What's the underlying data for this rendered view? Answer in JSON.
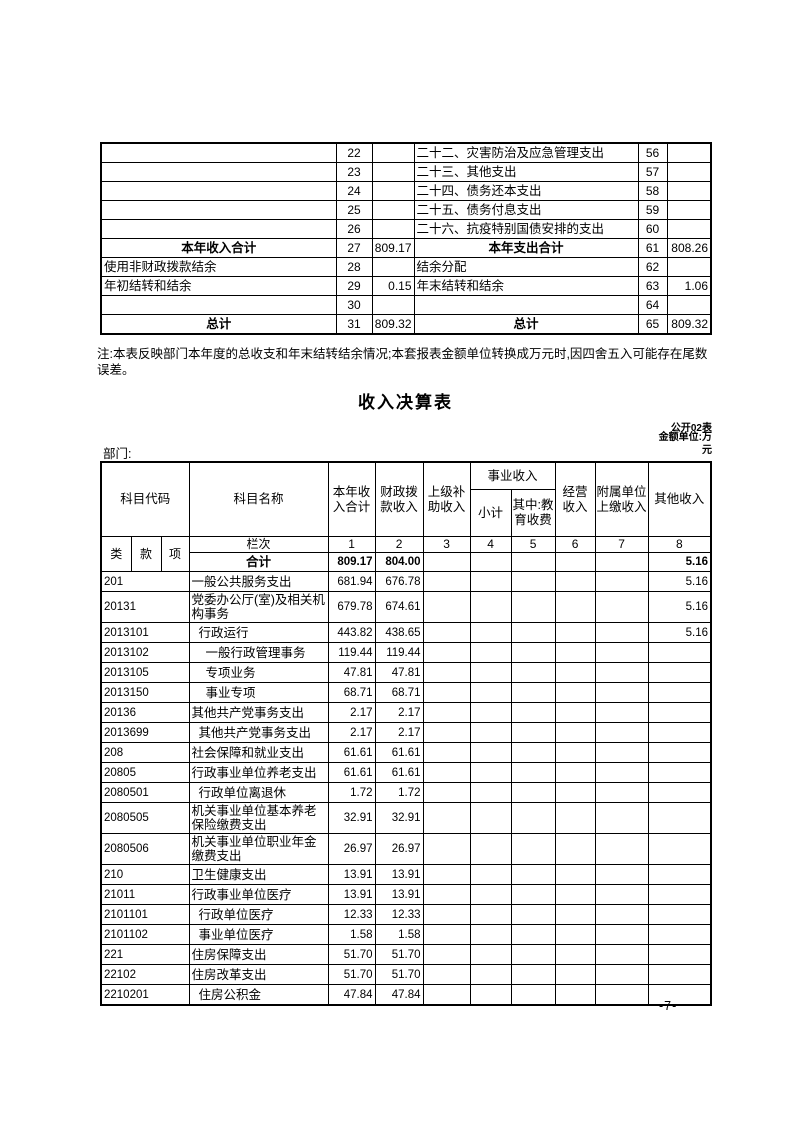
{
  "page_number": "-7-",
  "note": "注:本表反映部门本年度的总收支和年末结转结余情况;本套报表金额单位转换成万元时,因四舍五入可能存在尾数误差。",
  "summary_table": {
    "rows": [
      {
        "l_label": "",
        "l_bold": false,
        "l_no": "22",
        "l_val": "",
        "r_label": "二十二、灾害防治及应急管理支出",
        "r_bold": false,
        "r_no": "56",
        "r_val": ""
      },
      {
        "l_label": "",
        "l_bold": false,
        "l_no": "23",
        "l_val": "",
        "r_label": "二十三、其他支出",
        "r_bold": false,
        "r_no": "57",
        "r_val": ""
      },
      {
        "l_label": "",
        "l_bold": false,
        "l_no": "24",
        "l_val": "",
        "r_label": "二十四、债务还本支出",
        "r_bold": false,
        "r_no": "58",
        "r_val": ""
      },
      {
        "l_label": "",
        "l_bold": false,
        "l_no": "25",
        "l_val": "",
        "r_label": "二十五、债务付息支出",
        "r_bold": false,
        "r_no": "59",
        "r_val": ""
      },
      {
        "l_label": "",
        "l_bold": false,
        "l_no": "26",
        "l_val": "",
        "r_label": "二十六、抗疫特别国债安排的支出",
        "r_bold": false,
        "r_no": "60",
        "r_val": ""
      },
      {
        "l_label": "本年收入合计",
        "l_bold": true,
        "l_no": "27",
        "l_val": "809.17",
        "r_label": "本年支出合计",
        "r_bold": true,
        "r_no": "61",
        "r_val": "808.26"
      },
      {
        "l_label": "使用非财政拨款结余",
        "l_bold": false,
        "l_no": "28",
        "l_val": "",
        "r_label": "结余分配",
        "r_bold": false,
        "r_no": "62",
        "r_val": ""
      },
      {
        "l_label": "年初结转和结余",
        "l_bold": false,
        "l_no": "29",
        "l_val": "0.15",
        "r_label": "年末结转和结余",
        "r_bold": false,
        "r_no": "63",
        "r_val": "1.06"
      },
      {
        "l_label": "",
        "l_bold": false,
        "l_no": "30",
        "l_val": "",
        "r_label": "",
        "r_bold": false,
        "r_no": "64",
        "r_val": ""
      },
      {
        "l_label": "总计",
        "l_bold": true,
        "l_no": "31",
        "l_val": "809.32",
        "r_label": "总计",
        "r_bold": true,
        "r_no": "65",
        "r_val": "809.32"
      }
    ]
  },
  "income_table": {
    "title": "收入决算表",
    "table_code": "公开02表",
    "unit_lines": [
      "金额单位:万",
      "元"
    ],
    "department_label": "部门:",
    "headers": {
      "subject_code": "科目代码",
      "subject_name": "科目名称",
      "current_year_total": "本年收入合计",
      "fiscal_allocation": "财政拨款收入",
      "superior_subsidy": "上级补助收入",
      "business_income": "事业收入",
      "subtotal": "小计",
      "education_fees": "其中:教育收费",
      "operating_income": "经营收入",
      "affiliated_units": "附属单位上缴收入",
      "other_income": "其他收入",
      "class": "类",
      "section": "款",
      "item": "项",
      "column_index_label": "栏次",
      "column_numbers": [
        "1",
        "2",
        "3",
        "4",
        "5",
        "6",
        "7",
        "8"
      ]
    },
    "total_row": {
      "label": "合计",
      "values": [
        "809.17",
        "804.00",
        "",
        "",
        "",
        "",
        "",
        "5.16"
      ]
    },
    "rows": [
      {
        "code": "201",
        "name": "一般公共服务支出",
        "indent": 0,
        "values": [
          "681.94",
          "676.78",
          "",
          "",
          "",
          "",
          "",
          "5.16"
        ]
      },
      {
        "code": "20131",
        "name": "党委办公厅(室)及相关机构事务",
        "indent": 0,
        "values": [
          "679.78",
          "674.61",
          "",
          "",
          "",
          "",
          "",
          "5.16"
        ]
      },
      {
        "code": "2013101",
        "name": "行政运行",
        "indent": 1,
        "values": [
          "443.82",
          "438.65",
          "",
          "",
          "",
          "",
          "",
          "5.16"
        ]
      },
      {
        "code": "2013102",
        "name": "一般行政管理事务",
        "indent": 2,
        "values": [
          "119.44",
          "119.44",
          "",
          "",
          "",
          "",
          "",
          ""
        ]
      },
      {
        "code": "2013105",
        "name": "专项业务",
        "indent": 2,
        "values": [
          "47.81",
          "47.81",
          "",
          "",
          "",
          "",
          "",
          ""
        ]
      },
      {
        "code": "2013150",
        "name": "事业专项",
        "indent": 2,
        "values": [
          "68.71",
          "68.71",
          "",
          "",
          "",
          "",
          "",
          ""
        ]
      },
      {
        "code": "20136",
        "name": "其他共产党事务支出",
        "indent": 0,
        "values": [
          "2.17",
          "2.17",
          "",
          "",
          "",
          "",
          "",
          ""
        ]
      },
      {
        "code": "2013699",
        "name": "其他共产党事务支出",
        "indent": 1,
        "values": [
          "2.17",
          "2.17",
          "",
          "",
          "",
          "",
          "",
          ""
        ]
      },
      {
        "code": "208",
        "name": "社会保障和就业支出",
        "indent": 0,
        "values": [
          "61.61",
          "61.61",
          "",
          "",
          "",
          "",
          "",
          ""
        ]
      },
      {
        "code": "20805",
        "name": "行政事业单位养老支出",
        "indent": 0,
        "values": [
          "61.61",
          "61.61",
          "",
          "",
          "",
          "",
          "",
          ""
        ]
      },
      {
        "code": "2080501",
        "name": "行政单位离退休",
        "indent": 1,
        "values": [
          "1.72",
          "1.72",
          "",
          "",
          "",
          "",
          "",
          ""
        ]
      },
      {
        "code": "2080505",
        "name": "机关事业单位基本养老保险缴费支出",
        "indent": 0,
        "values": [
          "32.91",
          "32.91",
          "",
          "",
          "",
          "",
          "",
          ""
        ]
      },
      {
        "code": "2080506",
        "name": "机关事业单位职业年金缴费支出",
        "indent": 0,
        "values": [
          "26.97",
          "26.97",
          "",
          "",
          "",
          "",
          "",
          ""
        ]
      },
      {
        "code": "210",
        "name": "卫生健康支出",
        "indent": 0,
        "values": [
          "13.91",
          "13.91",
          "",
          "",
          "",
          "",
          "",
          ""
        ]
      },
      {
        "code": "21011",
        "name": "行政事业单位医疗",
        "indent": 0,
        "values": [
          "13.91",
          "13.91",
          "",
          "",
          "",
          "",
          "",
          ""
        ]
      },
      {
        "code": "2101101",
        "name": "行政单位医疗",
        "indent": 1,
        "values": [
          "12.33",
          "12.33",
          "",
          "",
          "",
          "",
          "",
          ""
        ]
      },
      {
        "code": "2101102",
        "name": "事业单位医疗",
        "indent": 1,
        "values": [
          "1.58",
          "1.58",
          "",
          "",
          "",
          "",
          "",
          ""
        ]
      },
      {
        "code": "221",
        "name": "住房保障支出",
        "indent": 0,
        "values": [
          "51.70",
          "51.70",
          "",
          "",
          "",
          "",
          "",
          ""
        ]
      },
      {
        "code": "22102",
        "name": "住房改革支出",
        "indent": 0,
        "values": [
          "51.70",
          "51.70",
          "",
          "",
          "",
          "",
          "",
          ""
        ]
      },
      {
        "code": "2210201",
        "name": "住房公积金",
        "indent": 1,
        "values": [
          "47.84",
          "47.84",
          "",
          "",
          "",
          "",
          "",
          ""
        ]
      }
    ]
  }
}
